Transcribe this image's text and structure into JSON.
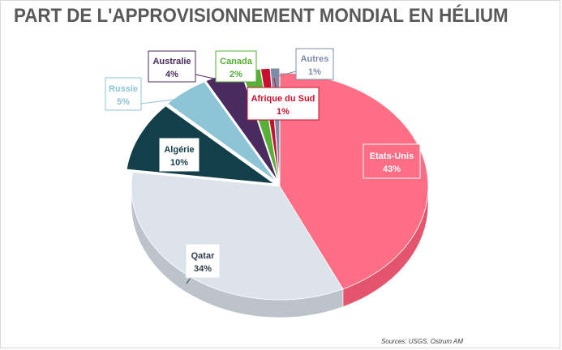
{
  "chart_data": {
    "type": "pie",
    "title": "PART DE L'APPROVISIONNEMENT MONDIAL EN HÉLIUM",
    "source": "Sources: USGS, Ostrum AM",
    "slices": [
      {
        "label": "Etats-Unis",
        "value": 43,
        "value_label": "43%",
        "color": "#ff6e85",
        "side_color": "#e4546c",
        "text_color": "#ffffff",
        "label_fill": "#ff6e85"
      },
      {
        "label": "Qatar",
        "value": 34,
        "value_label": "34%",
        "color": "#dde3ea",
        "side_color": "#bcc3cb",
        "text_color": "#333f4f",
        "label_fill": "#ffffff"
      },
      {
        "label": "Algérie",
        "value": 10,
        "value_label": "10%",
        "color": "#123f4a",
        "side_color": "#0b2a32",
        "text_color": "#123f4a",
        "label_fill": "#ffffff"
      },
      {
        "label": "Russie",
        "value": 5,
        "value_label": "5%",
        "color": "#8dc4d6",
        "side_color": "#6ea6b8",
        "text_color": "#8dc4d6",
        "label_fill": "#ffffff"
      },
      {
        "label": "Australie",
        "value": 4,
        "value_label": "4%",
        "color": "#4b2a5f",
        "side_color": "#361d45",
        "text_color": "#4b2a5f",
        "label_fill": "#ffffff"
      },
      {
        "label": "Canada",
        "value": 2,
        "value_label": "2%",
        "color": "#55b035",
        "side_color": "#3f8a26",
        "text_color": "#55b035",
        "label_fill": "#ffffff"
      },
      {
        "label": "Afrique du Sud",
        "value": 1,
        "value_label": "1%",
        "color": "#c8102e",
        "side_color": "#9a0c23",
        "text_color": "#c8102e",
        "label_fill": "#ffffff"
      },
      {
        "label": "Autres",
        "value": 1,
        "value_label": "1%",
        "color": "#7d8da8",
        "side_color": "#5f6e87",
        "text_color": "#7d8da8",
        "label_fill": "#ffffff"
      }
    ]
  }
}
